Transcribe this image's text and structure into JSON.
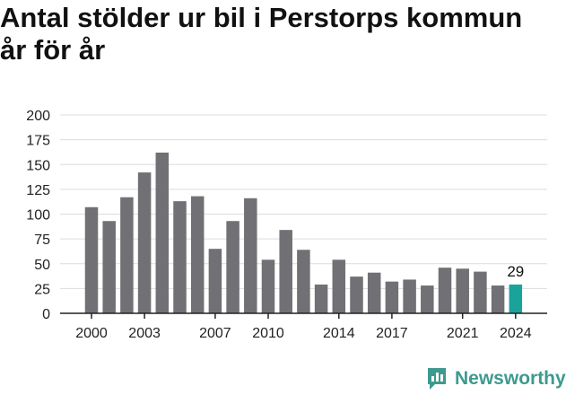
{
  "title_line1": "Antal stölder ur bil i Perstorps kommun",
  "title_line2": "år för år",
  "brand": "Newsworthy",
  "colors": {
    "bar": "#717074",
    "highlight": "#1aa39b",
    "grid": "#dcdcdc",
    "axis": "#222222",
    "brand": "#3d9a8e"
  },
  "chart_data": {
    "type": "bar",
    "categories": [
      2000,
      2001,
      2002,
      2003,
      2004,
      2005,
      2006,
      2007,
      2008,
      2009,
      2010,
      2011,
      2012,
      2013,
      2014,
      2015,
      2016,
      2017,
      2018,
      2019,
      2020,
      2021,
      2022,
      2023,
      2024
    ],
    "values": [
      107,
      93,
      117,
      142,
      162,
      113,
      118,
      65,
      93,
      116,
      54,
      84,
      64,
      29,
      54,
      37,
      41,
      32,
      34,
      28,
      46,
      45,
      42,
      28,
      29
    ],
    "x_tick_labels": [
      "2000",
      "2003",
      "2007",
      "2010",
      "2014",
      "2017",
      "2021",
      "2024"
    ],
    "y_ticks": [
      0,
      25,
      50,
      75,
      100,
      125,
      150,
      175,
      200
    ],
    "ylim": [
      0,
      200
    ],
    "highlight_category": 2024,
    "highlight_label": "29",
    "grid": true
  }
}
